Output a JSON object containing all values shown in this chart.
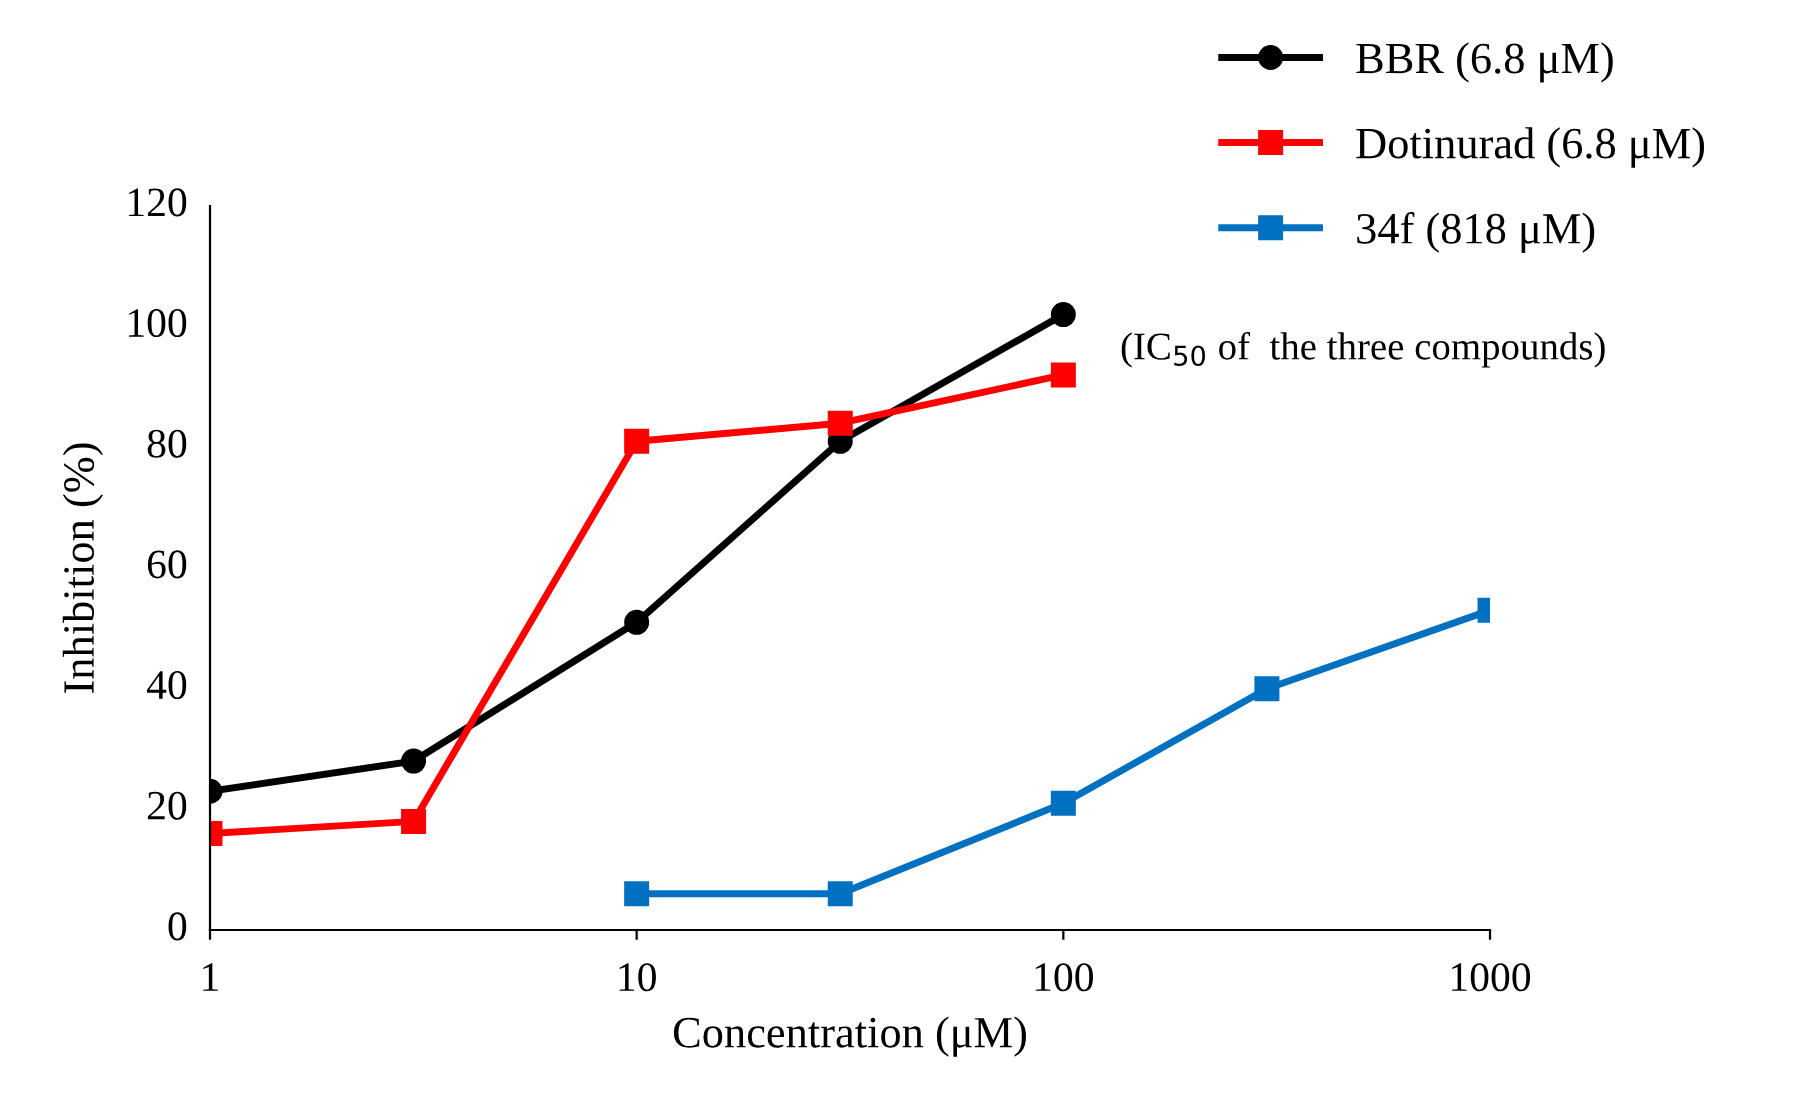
{
  "chart_data": {
    "type": "line",
    "xlabel": "Concentration (μM)",
    "ylabel": "Inhibition (%)",
    "log": "x",
    "xlim": [
      1,
      1000
    ],
    "xticks": [
      1,
      10,
      100,
      1000
    ],
    "ylim": [
      0,
      120
    ],
    "yticks": [
      0,
      20,
      40,
      60,
      80,
      100,
      120
    ],
    "grid": false,
    "legend": "top right",
    "line_style": "solid",
    "annotations": [
      "(IC$_{50}$ of  the three compounds)"
    ],
    "series": [
      {
        "name": "BBR (6.8 μM)",
        "color": "#000000",
        "marker": "circle",
        "x": [
          1,
          3,
          10,
          30,
          100
        ],
        "values": [
          23,
          28,
          51,
          81,
          102
        ]
      },
      {
        "name": "Dotinurad (6.8 μM)",
        "color": "#ff0000",
        "marker": "square",
        "x": [
          1,
          3,
          10,
          30,
          100
        ],
        "values": [
          16,
          18,
          81,
          84,
          92
        ]
      },
      {
        "name": "34f (818 μM)",
        "color": "#0070c0",
        "marker": "square",
        "x": [
          10,
          30,
          100,
          300,
          1000
        ],
        "values": [
          6,
          6,
          21,
          40,
          53
        ]
      }
    ]
  }
}
